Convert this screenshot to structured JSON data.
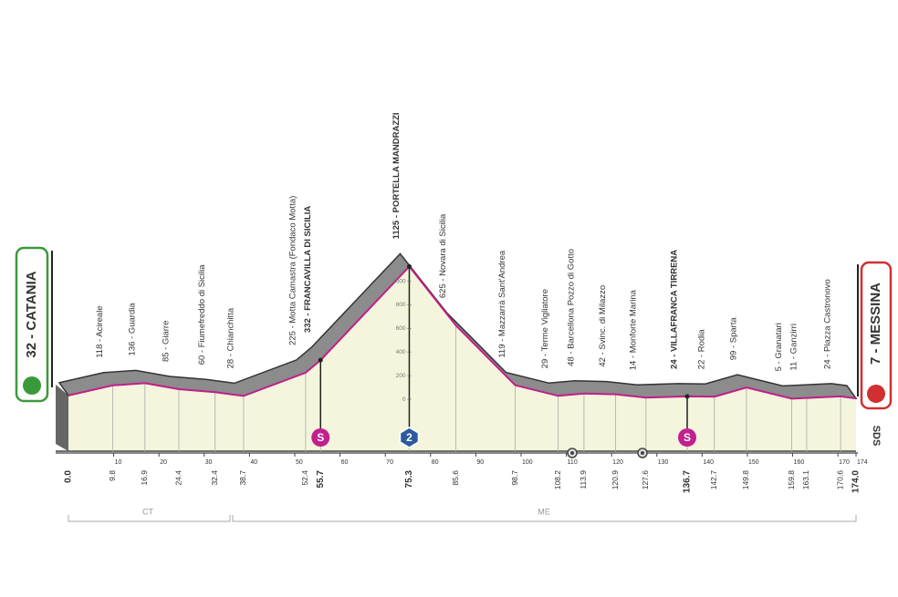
{
  "chart_data": {
    "type": "area",
    "x": [
      {
        "value": 0,
        "label": "0.0"
      },
      9.8,
      16.9,
      24.4,
      32.4,
      38.7,
      52.4,
      55.7,
      75.3,
      85.6,
      98.7,
      108.2,
      113.9,
      120.9,
      127.6,
      136.7,
      142.7,
      149.8,
      159.8,
      163.1,
      170.6,
      {
        "value": 174,
        "label": "174.0"
      }
    ],
    "values": [
      32,
      118,
      136,
      85,
      60,
      28,
      225,
      332,
      1125,
      625,
      119,
      29,
      48,
      42,
      14,
      24,
      22,
      99,
      5,
      11,
      24,
      7
    ],
    "value_labels": [
      "32 - CATANIA",
      "118 - Acireale",
      "136 - Guardia",
      "85 - Giarre",
      "60 - Fiumefreddo di Sicilia",
      "28 - Chianchitta",
      "225 - Motta Camastra (Fondaco Motta)",
      "332 - FRANCAVILLA DI SICILIA",
      "1125 - PORTELLA MANDRAZZI",
      "625 - Novara di Sicilia",
      "119 - Mazzarrà  Sant'Andrea",
      "29 - Terme Vigliatore",
      "48 - Barcellona Pozzo di Gotto",
      "42 - Svinc. di Milazzo",
      "14 - Monforte Marina",
      "24 - VILLAFRANCA TIRRENA",
      "22 - Rodia",
      "99 - Sparta",
      "5 - Granatari",
      "11 - Ganzirri",
      "24 - Piazza Castronovo",
      "7 - MESSINA"
    ],
    "color": "#c0208a",
    "xlim": [
      0,
      174
    ],
    "xticks": [
      10,
      20,
      30,
      40,
      50,
      60,
      70,
      80,
      90,
      100,
      110,
      120,
      130,
      140,
      150,
      160,
      170,
      174
    ],
    "ylim": [
      -440,
      1700
    ],
    "yticks": [
      0,
      200,
      400,
      600,
      800,
      1000
    ],
    "zones": [
      "CT",
      "ME"
    ],
    "sprint_label": "S",
    "kom_label": "2",
    "logo": "SDS"
  }
}
